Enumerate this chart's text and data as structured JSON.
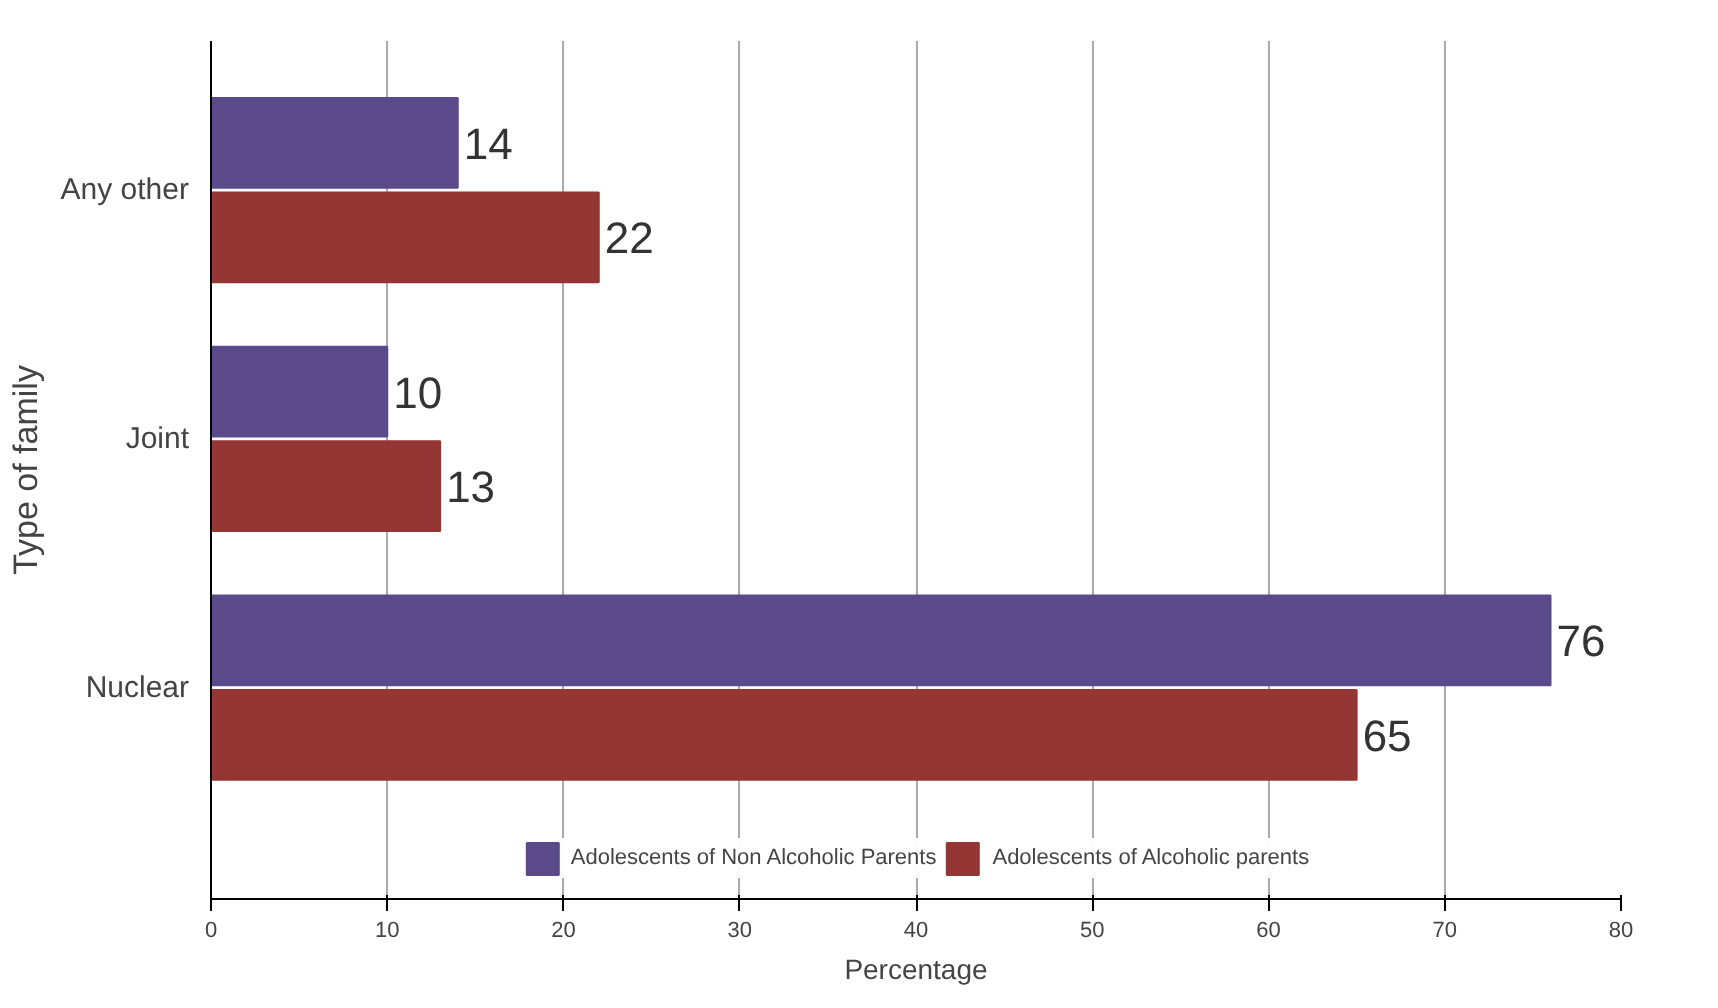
{
  "chart_data": {
    "type": "bar",
    "orientation": "horizontal",
    "xlabel": "Percentage",
    "ylabel": "Type of family",
    "categories": [
      "Any other",
      "Joint",
      "Nuclear"
    ],
    "series": [
      {
        "name": "Adolescents of Non Alcoholic Parents",
        "color": "#5b4a8a",
        "values": [
          14,
          10,
          76
        ]
      },
      {
        "name": "Adolescents of Alcoholic parents",
        "color": "#943634",
        "values": [
          22,
          13,
          65
        ]
      }
    ],
    "xlim": [
      0,
      80
    ],
    "xticks": [
      0,
      10,
      20,
      30,
      40,
      50,
      60,
      70,
      80
    ],
    "grid": "x",
    "legend": "bottom",
    "data_labels": true
  }
}
